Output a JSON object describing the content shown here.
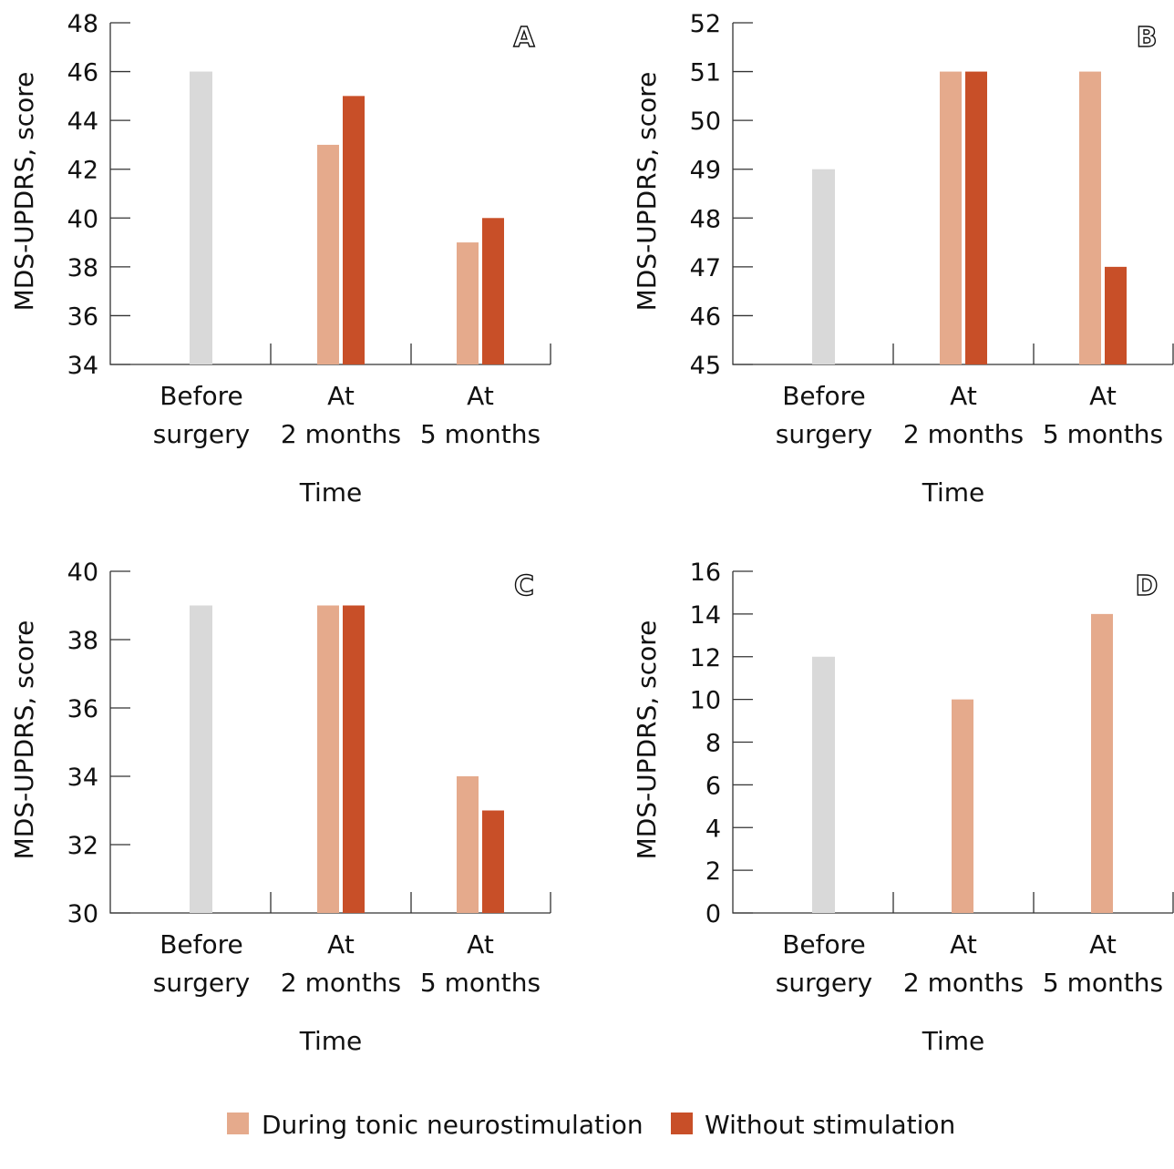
{
  "colors": {
    "before": "#d9d9d9",
    "tonic": "#e5aa8c",
    "without": "#c84f28"
  },
  "legend": [
    {
      "label": "During tonic neurostimulation",
      "color": "#e5aa8c"
    },
    {
      "label": "Without stimulation",
      "color": "#c84f28"
    }
  ],
  "chart_data": [
    {
      "type": "bar",
      "panel": "A",
      "ylabel": "MDS-UPDRS, score",
      "xlabel": "Time",
      "categories": [
        [
          "Before",
          "surgery"
        ],
        [
          "At",
          "2 months"
        ],
        [
          "At",
          "5 months"
        ]
      ],
      "ylim": [
        34,
        48
      ],
      "yticks": [
        34,
        36,
        38,
        40,
        42,
        44,
        46,
        48
      ],
      "before": 46,
      "series": [
        {
          "name": "During tonic neurostimulation",
          "values": [
            null,
            43,
            39
          ]
        },
        {
          "name": "Without stimulation",
          "values": [
            null,
            45,
            40
          ]
        }
      ]
    },
    {
      "type": "bar",
      "panel": "B",
      "ylabel": "MDS-UPDRS, score",
      "xlabel": "Time",
      "categories": [
        [
          "Before",
          "surgery"
        ],
        [
          "At",
          "2 months"
        ],
        [
          "At",
          "5 months"
        ]
      ],
      "ylim": [
        45,
        52
      ],
      "yticks": [
        45,
        46,
        47,
        48,
        49,
        50,
        51,
        52
      ],
      "before": 49,
      "series": [
        {
          "name": "During tonic neurostimulation",
          "values": [
            null,
            51,
            51
          ]
        },
        {
          "name": "Without stimulation",
          "values": [
            null,
            51,
            47
          ]
        }
      ]
    },
    {
      "type": "bar",
      "panel": "C",
      "ylabel": "MDS-UPDRS, score",
      "xlabel": "Time",
      "categories": [
        [
          "Before",
          "surgery"
        ],
        [
          "At",
          "2 months"
        ],
        [
          "At",
          "5 months"
        ]
      ],
      "ylim": [
        30,
        40
      ],
      "yticks": [
        30,
        32,
        34,
        36,
        38,
        40
      ],
      "before": 39,
      "series": [
        {
          "name": "During tonic neurostimulation",
          "values": [
            null,
            39,
            34
          ]
        },
        {
          "name": "Without stimulation",
          "values": [
            null,
            39,
            33
          ]
        }
      ]
    },
    {
      "type": "bar",
      "panel": "D",
      "ylabel": "MDS-UPDRS, score",
      "xlabel": "Time",
      "categories": [
        [
          "Before",
          "surgery"
        ],
        [
          "At",
          "2 months"
        ],
        [
          "At",
          "5 months"
        ]
      ],
      "ylim": [
        0,
        16
      ],
      "yticks": [
        0,
        2,
        4,
        6,
        8,
        10,
        12,
        14,
        16
      ],
      "before": 12,
      "series": [
        {
          "name": "During tonic neurostimulation",
          "values": [
            null,
            10,
            14
          ]
        },
        {
          "name": "Without stimulation",
          "values": [
            null,
            null,
            null
          ]
        }
      ]
    }
  ]
}
